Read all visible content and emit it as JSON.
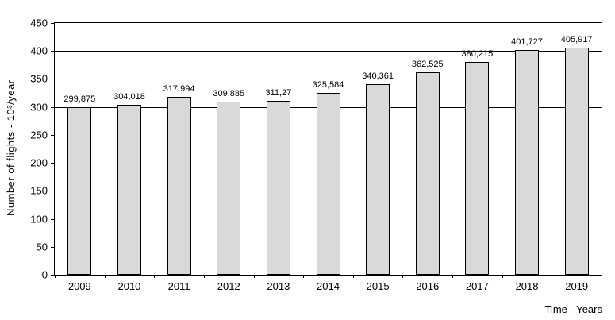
{
  "chart_data": {
    "type": "bar",
    "title": "",
    "categories": [
      "2009",
      "2010",
      "2011",
      "2012",
      "2013",
      "2014",
      "2015",
      "2016",
      "2017",
      "2018",
      "2019"
    ],
    "values": [
      299.875,
      304.018,
      317.994,
      309.885,
      311.27,
      325.584,
      340.361,
      362.525,
      380.215,
      401.727,
      405.917
    ],
    "value_labels": [
      "299,875",
      "304,018",
      "317,994",
      "309,885",
      "311,27",
      "325,584",
      "340,361",
      "362,525",
      "380,215",
      "401,727",
      "405,917"
    ],
    "ylabel": "Number  of flights - 10³/year",
    "xlabel": "Time  - Years",
    "ylim": [
      0,
      450
    ],
    "yticks": [
      0,
      50,
      100,
      150,
      200,
      250,
      300,
      350,
      400,
      450
    ],
    "gridlines": [
      300,
      350,
      400
    ],
    "legend_position": "none",
    "grid": "partial-horizontal",
    "bar_fill_color": "#d9d9d9",
    "bar_border_color": "#000000",
    "axis_color": "#000000"
  }
}
